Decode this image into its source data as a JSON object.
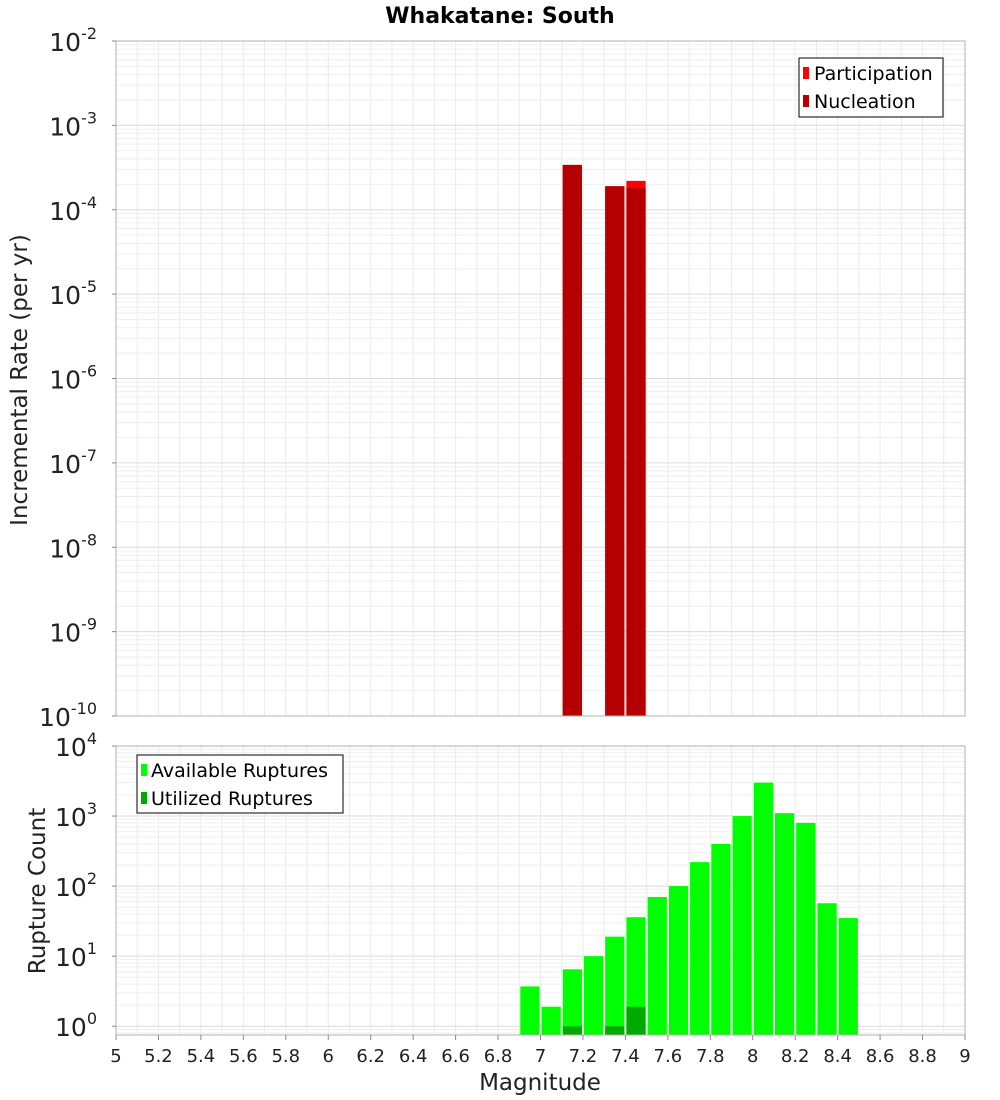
{
  "chart_data": [
    {
      "type": "bar",
      "title": "Whakatane: South",
      "ylabel": "Incremental Rate (per yr)",
      "xlabel": "",
      "xlim": [
        5,
        9
      ],
      "ylim": [
        1e-10,
        0.01
      ],
      "yscale": "log",
      "ytick_exponents": [
        "-10",
        "-9",
        "-8",
        "-7",
        "-6",
        "-5",
        "-4",
        "-3",
        "-2"
      ],
      "grid": true,
      "legend_position": "top-right",
      "series": [
        {
          "name": "Participation",
          "color": "#ff0000",
          "x": [
            7.1,
            7.3,
            7.4
          ],
          "values": [
            0.00034,
            0.00019,
            0.00022
          ]
        },
        {
          "name": "Nucleation",
          "color": "#b40000",
          "x": [
            7.1,
            7.3,
            7.4
          ],
          "values": [
            0.00034,
            0.00019,
            0.00018
          ]
        }
      ]
    },
    {
      "type": "bar",
      "title": "",
      "ylabel": "Rupture Count",
      "xlabel": "Magnitude",
      "xlim": [
        5,
        9
      ],
      "ylim": [
        0.75,
        10000
      ],
      "yscale": "log",
      "ytick_exponents": [
        "0",
        "1",
        "2",
        "3",
        "4"
      ],
      "xticks": [
        "5",
        "5.2",
        "5.4",
        "5.6",
        "5.8",
        "6",
        "6.2",
        "6.4",
        "6.6",
        "6.8",
        "7",
        "7.2",
        "7.4",
        "7.6",
        "7.8",
        "8",
        "8.2",
        "8.4",
        "8.6",
        "8.8",
        "9"
      ],
      "grid": true,
      "legend_position": "top-left",
      "series": [
        {
          "name": "Available Ruptures",
          "color": "#00ff00",
          "x": [
            6.95,
            7.05,
            7.15,
            7.25,
            7.35,
            7.45,
            7.55,
            7.65,
            7.75,
            7.85,
            7.95,
            8.05,
            8.15,
            8.25,
            8.35,
            8.45
          ],
          "values": [
            3.7,
            1.9,
            6.5,
            10,
            19,
            36,
            70,
            100,
            220,
            400,
            1000,
            3000,
            1100,
            800,
            57,
            35
          ]
        },
        {
          "name": "Utilized Ruptures",
          "color": "#00aa00",
          "x": [
            7.15,
            7.35,
            7.45
          ],
          "values": [
            1,
            1,
            1.9
          ]
        }
      ]
    }
  ]
}
